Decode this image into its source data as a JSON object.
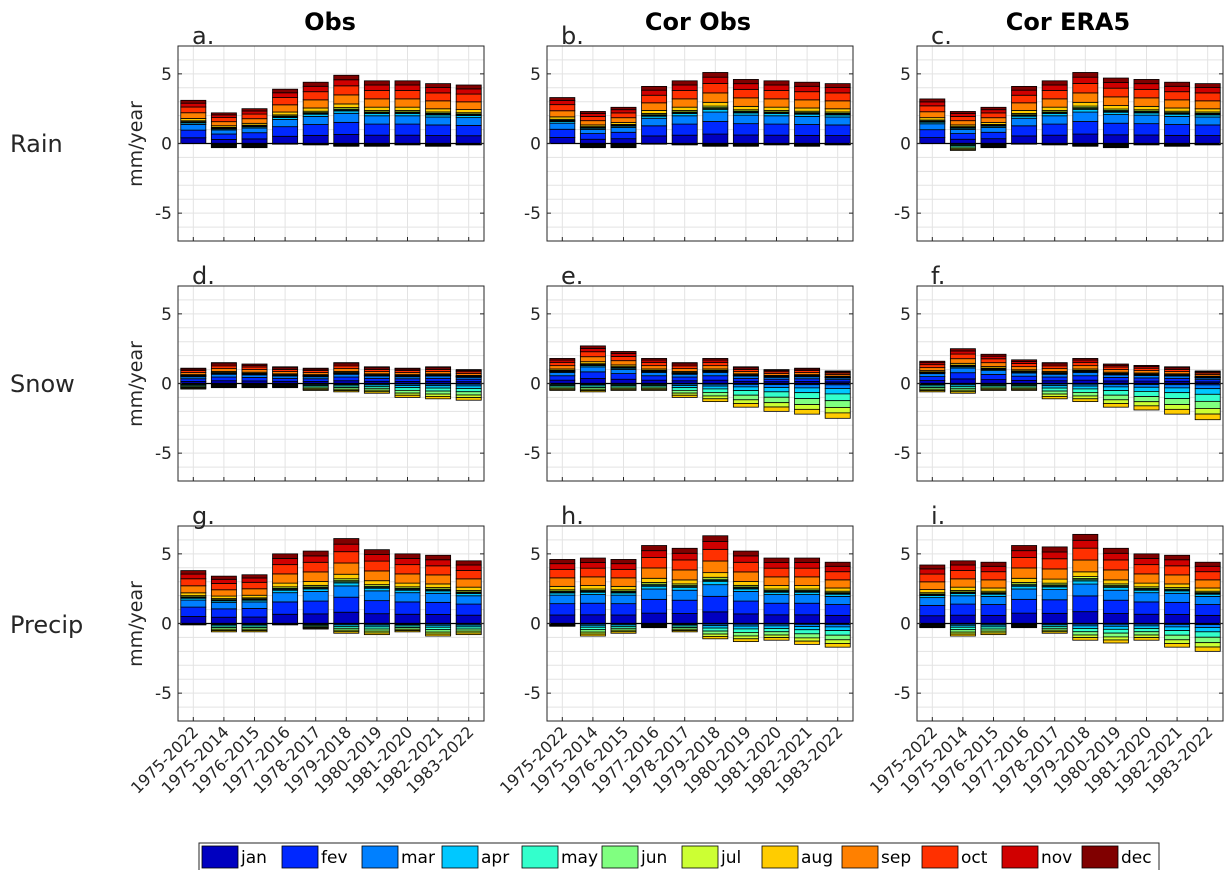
{
  "column_titles": [
    "Obs",
    "Cor Obs",
    "Cor ERA5"
  ],
  "row_labels": [
    "Rain",
    "Snow",
    "Precip"
  ],
  "ylabel": "mm/year",
  "chart_data": {
    "type": "bar",
    "stacked": true,
    "ylim": [
      -7,
      7
    ],
    "yticks": [
      -5,
      0,
      5
    ],
    "grid": true,
    "legend": {
      "placement": "bottom",
      "orientation": "horizontal"
    },
    "categories": [
      "1975-2022",
      "1975-2014",
      "1976-2015",
      "1977-2016",
      "1978-2017",
      "1979-2018",
      "1980-2019",
      "1981-2020",
      "1982-2021",
      "1983-2022"
    ],
    "series_names": [
      "jan",
      "fev",
      "mar",
      "apr",
      "may",
      "jun",
      "jul",
      "aug",
      "sep",
      "oct",
      "nov",
      "dec"
    ],
    "series_colors": [
      "#0000c0",
      "#0028ff",
      "#0080ff",
      "#00c8ff",
      "#33ffcc",
      "#80ff80",
      "#ccff33",
      "#ffcc00",
      "#ff8000",
      "#ff3000",
      "#d00000",
      "#800000"
    ],
    "panels": [
      {
        "id": "a.",
        "pos": [
          3.1,
          2.2,
          2.5,
          3.9,
          4.4,
          4.9,
          4.5,
          4.5,
          4.3,
          4.2
        ],
        "neg": [
          0,
          -0.3,
          -0.3,
          -0.05,
          -0.1,
          -0.2,
          -0.2,
          -0.1,
          -0.2,
          -0.1
        ]
      },
      {
        "id": "b.",
        "pos": [
          3.3,
          2.3,
          2.6,
          4.1,
          4.5,
          5.1,
          4.6,
          4.5,
          4.4,
          4.3
        ],
        "neg": [
          0,
          -0.3,
          -0.3,
          -0.05,
          -0.1,
          -0.2,
          -0.2,
          -0.1,
          -0.2,
          -0.1
        ]
      },
      {
        "id": "c.",
        "pos": [
          3.2,
          2.3,
          2.6,
          4.1,
          4.5,
          5.1,
          4.7,
          4.6,
          4.4,
          4.3
        ],
        "neg": [
          0,
          -0.5,
          -0.3,
          -0.05,
          -0.1,
          -0.2,
          -0.3,
          -0.1,
          -0.2,
          -0.1
        ]
      },
      {
        "id": "d.",
        "pos": [
          1.1,
          1.5,
          1.4,
          1.2,
          1.1,
          1.5,
          1.2,
          1.1,
          1.2,
          1.0
        ],
        "neg": [
          -0.4,
          -0.3,
          -0.3,
          -0.3,
          -0.5,
          -0.6,
          -0.7,
          -1.0,
          -1.1,
          -1.2
        ]
      },
      {
        "id": "e.",
        "pos": [
          1.8,
          2.7,
          2.3,
          1.8,
          1.5,
          1.8,
          1.2,
          1.0,
          1.1,
          0.9
        ],
        "neg": [
          -0.5,
          -0.6,
          -0.5,
          -0.5,
          -1.0,
          -1.3,
          -1.7,
          -2.0,
          -2.2,
          -2.5
        ]
      },
      {
        "id": "f.",
        "pos": [
          1.6,
          2.5,
          2.1,
          1.7,
          1.5,
          1.8,
          1.4,
          1.3,
          1.2,
          0.9
        ],
        "neg": [
          -0.6,
          -0.7,
          -0.5,
          -0.5,
          -1.1,
          -1.3,
          -1.7,
          -1.9,
          -2.2,
          -2.6
        ]
      },
      {
        "id": "g.",
        "pos": [
          3.8,
          3.4,
          3.5,
          5.0,
          5.2,
          6.1,
          5.3,
          5.0,
          4.9,
          4.5
        ],
        "neg": [
          -0.1,
          -0.6,
          -0.6,
          -0.1,
          -0.4,
          -0.7,
          -0.8,
          -0.6,
          -0.9,
          -0.8
        ]
      },
      {
        "id": "h.",
        "pos": [
          4.6,
          4.7,
          4.6,
          5.6,
          5.4,
          6.3,
          5.2,
          4.7,
          4.7,
          4.4
        ],
        "neg": [
          -0.2,
          -0.9,
          -0.7,
          -0.3,
          -0.6,
          -1.1,
          -1.3,
          -1.2,
          -1.5,
          -1.7
        ]
      },
      {
        "id": "i.",
        "pos": [
          4.2,
          4.5,
          4.4,
          5.6,
          5.5,
          6.4,
          5.4,
          5.0,
          4.9,
          4.4
        ],
        "neg": [
          -0.3,
          -0.9,
          -0.8,
          -0.3,
          -0.7,
          -1.2,
          -1.4,
          -1.2,
          -1.7,
          -2.0
        ]
      }
    ],
    "pos_weights": [
      3,
      4,
      3,
      0.8,
      0.3,
      0.3,
      0.5,
      1.2,
      3,
      3,
      2,
      1.5
    ],
    "neg_weights": [
      0,
      0.3,
      0.8,
      1.2,
      1.5,
      1.5,
      1.2,
      1.2,
      0,
      0,
      0,
      0
    ]
  }
}
